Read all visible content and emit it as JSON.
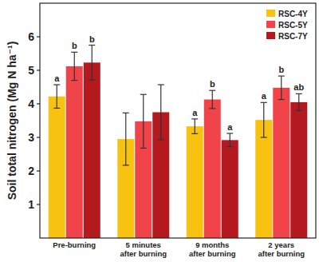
{
  "chart_data": {
    "type": "bar",
    "y_label": "Soil total nitrogen (Mg N ha⁻¹)",
    "categories": [
      "Pre-burning",
      "5 minutes\nafter burning",
      "9 months\nafter burning",
      "2 years\nafter burning"
    ],
    "series": [
      {
        "name": "RSC-4Y",
        "color": "#f7c210",
        "values": [
          4.22,
          2.95,
          3.33,
          3.52
        ],
        "errors": [
          0.35,
          0.78,
          0.22,
          0.52
        ],
        "letters": [
          "a",
          null,
          "a",
          "a"
        ]
      },
      {
        "name": "RSC-5Y",
        "color": "#f0434a",
        "values": [
          5.12,
          3.48,
          4.13,
          4.48
        ],
        "errors": [
          0.42,
          0.8,
          0.27,
          0.35
        ],
        "letters": [
          "b",
          null,
          "b",
          "b"
        ]
      },
      {
        "name": "RSC-7Y",
        "color": "#b3191f",
        "values": [
          5.23,
          3.75,
          2.92,
          4.05
        ],
        "errors": [
          0.52,
          0.82,
          0.2,
          0.25
        ],
        "letters": [
          "b",
          null,
          "a",
          "ab"
        ]
      }
    ],
    "ylim": [
      0,
      7
    ],
    "yticks": [
      1,
      2,
      3,
      4,
      5,
      6
    ],
    "legend": "top-right",
    "grid": false
  }
}
